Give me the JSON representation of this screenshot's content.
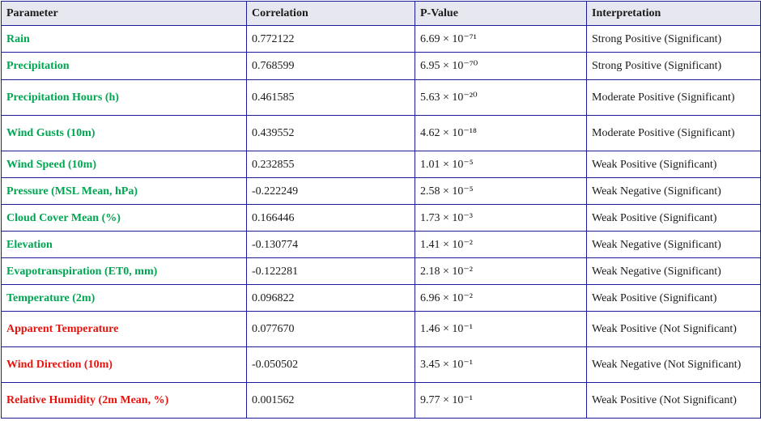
{
  "headers": [
    "Parameter",
    "Correlation",
    "P-Value",
    "Interpretation"
  ],
  "rows": [
    {
      "param": "Rain",
      "corr": "0.772122",
      "pval": "6.69 × 10⁻⁷¹",
      "interp": "Strong Positive (Significant)",
      "significant": true
    },
    {
      "param": "Precipitation",
      "corr": "0.768599",
      "pval": "6.95 × 10⁻⁷⁰",
      "interp": "Strong Positive (Significant)",
      "significant": true
    },
    {
      "param": "Precipitation Hours (h)",
      "corr": "0.461585",
      "pval": "5.63 × 10⁻²⁰",
      "interp": "Moderate Positive (Significant)",
      "significant": true
    },
    {
      "param": "Wind Gusts (10m)",
      "corr": "0.439552",
      "pval": "4.62 × 10⁻¹⁸",
      "interp": "Moderate Positive (Significant)",
      "significant": true
    },
    {
      "param": "Wind Speed (10m)",
      "corr": "0.232855",
      "pval": "1.01 × 10⁻⁵",
      "interp": "Weak Positive (Significant)",
      "significant": true
    },
    {
      "param": "Pressure (MSL Mean, hPa)",
      "corr": "-0.222249",
      "pval": "2.58 × 10⁻⁵",
      "interp": "Weak Negative (Significant)",
      "significant": true
    },
    {
      "param": "Cloud Cover Mean (%)",
      "corr": "0.166446",
      "pval": "1.73 × 10⁻³",
      "interp": "Weak Positive (Significant)",
      "significant": true
    },
    {
      "param": "Elevation",
      "corr": "-0.130774",
      "pval": "1.41 × 10⁻²",
      "interp": "Weak Negative (Significant)",
      "significant": true
    },
    {
      "param": "Evapotranspiration (ET0, mm)",
      "corr": "-0.122281",
      "pval": "2.18 × 10⁻²",
      "interp": "Weak Negative (Significant)",
      "significant": true
    },
    {
      "param": "Temperature (2m)",
      "corr": "0.096822",
      "pval": "6.96 × 10⁻²",
      "interp": "Weak Positive (Significant)",
      "significant": true
    },
    {
      "param": "Apparent Temperature",
      "corr": "0.077670",
      "pval": "1.46 × 10⁻¹",
      "interp": "Weak Positive (Not Significant)",
      "significant": false
    },
    {
      "param": "Wind Direction (10m)",
      "corr": "-0.050502",
      "pval": "3.45 × 10⁻¹",
      "interp": "Weak Negative (Not Significant)",
      "significant": false
    },
    {
      "param": "Relative Humidity (2m Mean, %)",
      "corr": "0.001562",
      "pval": "9.77 × 10⁻¹",
      "interp": "Weak Positive (Not Significant)",
      "significant": false
    }
  ],
  "colors": {
    "significant": "#00a651",
    "not_significant": "#e8120c",
    "border": "#1c1c9a",
    "header_bg": "#e7e7ef"
  }
}
